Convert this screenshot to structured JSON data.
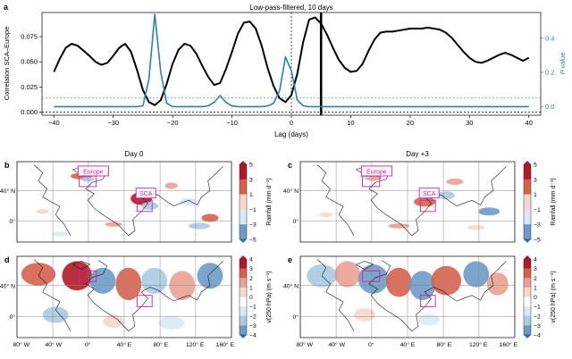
{
  "colors": {
    "corr_line": "#000000",
    "pvalue_line": "#2e7fb8",
    "right_axis": "#2e7fb8",
    "region_box": "#d01fa6",
    "grid": "#8c8c8c",
    "coast": "#1a1a1a"
  },
  "chart_data": [
    {
      "id": "a",
      "type": "line",
      "panel_label": "a",
      "title": "Low-pass-filtered, 10 days",
      "xlabel": "Lag (days)",
      "ylabel": "Correlation SCA–Europe",
      "y2label": "P value",
      "xlim": [
        -42,
        42
      ],
      "ylim": [
        -0.003,
        0.099
      ],
      "y2lim": [
        -0.05,
        0.55
      ],
      "xticks": [
        -40,
        -30,
        -20,
        -10,
        0,
        10,
        20,
        30,
        40
      ],
      "xtick_labels": [
        "−40",
        "−30",
        "−20",
        "−10",
        "0",
        "10",
        "20",
        "30",
        "40"
      ],
      "yticks": [
        0.0,
        0.025,
        0.05,
        0.075
      ],
      "ytick_labels": [
        "0.000",
        "0.025",
        "0.050",
        "0.075"
      ],
      "y2ticks": [
        0.0,
        0.2,
        0.4
      ],
      "y2tick_labels": [
        "0.0",
        "0.2",
        "0.4"
      ],
      "annotations": {
        "zero_lag_dashed": 0,
        "highlight_lag": 5,
        "significance_line": 0.05
      },
      "series": [
        {
          "name": "Correlation SCA–Europe",
          "axis": "left",
          "x": [
            -40,
            -39,
            -38,
            -37,
            -36,
            -35,
            -34,
            -33,
            -32,
            -31,
            -30,
            -29,
            -28,
            -27,
            -26,
            -25,
            -24,
            -23,
            -22,
            -21,
            -20,
            -19,
            -18,
            -17,
            -16,
            -15,
            -14,
            -13,
            -12,
            -11,
            -10,
            -9,
            -8,
            -7,
            -6,
            -5,
            -4,
            -3,
            -2,
            -1,
            0,
            1,
            2,
            3,
            4,
            5,
            6,
            7,
            8,
            9,
            10,
            11,
            12,
            13,
            14,
            15,
            16,
            17,
            18,
            19,
            20,
            21,
            22,
            23,
            24,
            25,
            26,
            27,
            28,
            29,
            30,
            31,
            32,
            33,
            34,
            35,
            36,
            37,
            38,
            39,
            40
          ],
          "values": [
            0.04,
            0.053,
            0.064,
            0.068,
            0.066,
            0.061,
            0.056,
            0.05,
            0.047,
            0.049,
            0.056,
            0.064,
            0.068,
            0.06,
            0.042,
            0.022,
            0.01,
            0.007,
            0.012,
            0.028,
            0.048,
            0.062,
            0.068,
            0.066,
            0.058,
            0.046,
            0.035,
            0.027,
            0.029,
            0.043,
            0.06,
            0.078,
            0.089,
            0.09,
            0.083,
            0.066,
            0.044,
            0.026,
            0.014,
            0.01,
            0.017,
            0.038,
            0.07,
            0.092,
            0.094,
            0.088,
            0.077,
            0.064,
            0.052,
            0.044,
            0.04,
            0.041,
            0.048,
            0.061,
            0.072,
            0.079,
            0.08,
            0.08,
            0.081,
            0.082,
            0.083,
            0.083,
            0.083,
            0.084,
            0.083,
            0.082,
            0.079,
            0.074,
            0.067,
            0.06,
            0.054,
            0.05,
            0.049,
            0.051,
            0.054,
            0.057,
            0.059,
            0.057,
            0.054,
            0.051,
            0.054
          ]
        },
        {
          "name": "P value",
          "axis": "right",
          "x": [
            -40,
            -39,
            -38,
            -37,
            -36,
            -35,
            -34,
            -33,
            -32,
            -31,
            -30,
            -29,
            -28,
            -27,
            -26,
            -25,
            -24,
            -23,
            -22,
            -21,
            -20,
            -19,
            -18,
            -17,
            -16,
            -15,
            -14,
            -13,
            -12,
            -11,
            -10,
            -9,
            -8,
            -7,
            -6,
            -5,
            -4,
            -3,
            -2,
            -1,
            0,
            1,
            2,
            3,
            4,
            5,
            6,
            7,
            8,
            9,
            10,
            11,
            12,
            13,
            14,
            15,
            16,
            17,
            18,
            19,
            20,
            21,
            22,
            23,
            24,
            25,
            26,
            27,
            28,
            29,
            30,
            31,
            32,
            33,
            34,
            35,
            36,
            37,
            38,
            39,
            40
          ],
          "values": [
            0.0,
            0.0,
            0.0,
            0.0,
            0.0,
            0.0,
            0.0,
            0.0,
            0.0,
            0.0,
            0.0,
            0.0,
            0.0,
            0.0,
            0.0,
            0.005,
            0.16,
            0.54,
            0.2,
            0.02,
            0.0,
            0.0,
            0.0,
            0.0,
            0.0,
            0.0,
            0.005,
            0.025,
            0.065,
            0.025,
            0.004,
            0.0,
            0.0,
            0.0,
            0.0,
            0.0,
            0.004,
            0.02,
            0.09,
            0.29,
            0.21,
            0.04,
            0.005,
            0.0,
            0.0,
            0.0,
            0.0,
            0.0,
            0.0,
            0.0,
            0.0,
            0.0,
            0.0,
            0.0,
            0.0,
            0.0,
            0.0,
            0.0,
            0.0,
            0.0,
            0.0,
            0.0,
            0.0,
            0.0,
            0.0,
            0.0,
            0.0,
            0.0,
            0.0,
            0.0,
            0.0,
            0.0,
            0.0,
            0.0,
            0.0,
            0.0,
            0.0,
            0.0,
            0.0,
            0.0,
            0.0
          ]
        }
      ]
    },
    {
      "id": "maps",
      "type": "heatmap",
      "columns": [
        "Day 0",
        "Day +3"
      ],
      "lon_labels": [
        "80° W",
        "40° W",
        "0°",
        "40° E",
        "80° E",
        "120° E",
        "160° E"
      ],
      "lat_labels": [
        "40° N",
        "0°"
      ],
      "region_boxes": [
        "Europe",
        "SCA"
      ],
      "panels": [
        {
          "panel_label": "b",
          "column": "Day 0",
          "field": "Rainfall"
        },
        {
          "panel_label": "c",
          "column": "Day +3",
          "field": "Rainfall"
        },
        {
          "panel_label": "d",
          "column": "Day 0",
          "field": "v(250 hPa)"
        },
        {
          "panel_label": "e",
          "column": "Day +3",
          "field": "v(250 hPa)"
        }
      ],
      "colorbars": [
        {
          "field": "Rainfall",
          "label": "Rainfall (mm d⁻¹)",
          "ticks": [
            5,
            3,
            1,
            -1,
            -3,
            -5
          ],
          "tick_labels": [
            "5",
            "3",
            "1",
            "−1",
            "−3",
            "−5"
          ]
        },
        {
          "field": "v(250 hPa)",
          "label": "v(250 hPa) (m s⁻¹)",
          "ticks": [
            4,
            3,
            2,
            1,
            0,
            -1,
            -2,
            -3,
            -4
          ],
          "tick_labels": [
            "4",
            "3",
            "2",
            "1",
            "0",
            "−1",
            "−2",
            "−3",
            "−4"
          ]
        }
      ]
    }
  ]
}
